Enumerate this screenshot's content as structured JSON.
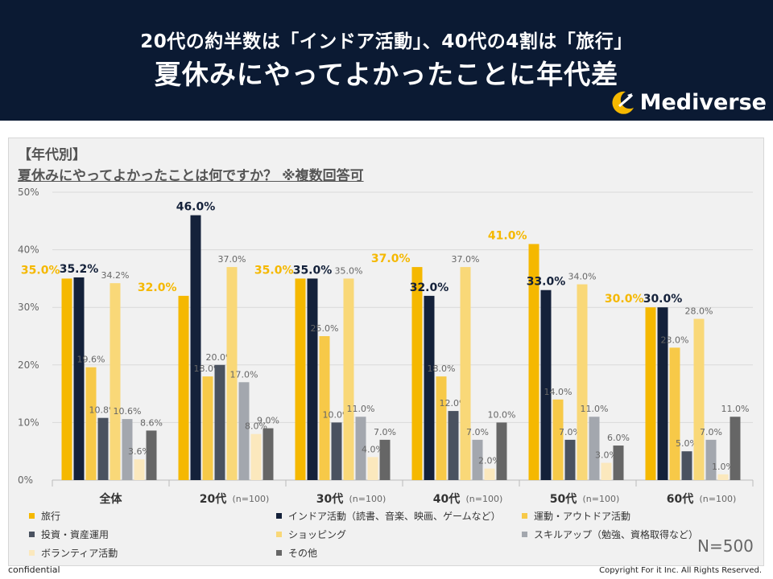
{
  "header": {
    "line1": "20代の約半数は「インドア活動」、40代の4割は「旅行」",
    "line2": "夏休みにやってよかったことに年代差",
    "logo_text": "Mediverse"
  },
  "chart_heading": {
    "category": "【年代別】",
    "question": "夏休みにやってよかったことは何ですか？ ※複数回答可"
  },
  "total_n": "N=500",
  "footer": {
    "left": "confidential",
    "right": "Copyright For it Inc. All Rights Reserved."
  },
  "colors": {
    "header_bg": "#0b1a33",
    "accent_gold": "#f5b800",
    "navy": "#14213a",
    "light_gold": "#f7c948",
    "dark_gray": "#4a5260",
    "pale_gold": "#f9d878",
    "light_gray": "#a3a7ae",
    "cream": "#fbe8bd",
    "mid_gray": "#666666"
  },
  "chart_data": {
    "type": "bar",
    "ylim": [
      0,
      50
    ],
    "yticks": [
      "0%",
      "10%",
      "20%",
      "30%",
      "40%",
      "50%"
    ],
    "categories": [
      {
        "name": "全体",
        "n": ""
      },
      {
        "name": "20代",
        "n": "(n=100)"
      },
      {
        "name": "30代",
        "n": "(n=100)"
      },
      {
        "name": "40代",
        "n": "(n=100)"
      },
      {
        "name": "50代",
        "n": "(n=100)"
      },
      {
        "name": "60代",
        "n": "(n=100)"
      }
    ],
    "series": [
      {
        "name": "旅行",
        "color": "#f5b800",
        "values": [
          35.0,
          32.0,
          35.0,
          37.0,
          41.0,
          30.0
        ],
        "labels": [
          "35.0%",
          "32.0%",
          "35.0%",
          "37.0%",
          "41.0%",
          "30.0%"
        ]
      },
      {
        "name": "インドア活動（読書、音楽、映画、ゲームなど）",
        "color": "#14213a",
        "values": [
          35.2,
          46.0,
          35.0,
          32.0,
          33.0,
          30.0
        ],
        "labels": [
          "35.2%",
          "46.0%",
          "35.0%",
          "32.0%",
          "33.0%",
          "30.0%"
        ]
      },
      {
        "name": "運動・アウトドア活動",
        "color": "#f7c948",
        "values": [
          19.6,
          18.0,
          25.0,
          18.0,
          14.0,
          23.0
        ],
        "labels": [
          "19.6%",
          "18.0%",
          "25.0%",
          "18.0%",
          "14.0%",
          "23.0%"
        ]
      },
      {
        "name": "投資・資産運用",
        "color": "#4a5260",
        "values": [
          10.8,
          20.0,
          10.0,
          12.0,
          7.0,
          5.0
        ],
        "labels": [
          "10.8%",
          "20.0%",
          "10.0%",
          "12.0%",
          "7.0%",
          "5.0%"
        ]
      },
      {
        "name": "ショッピング",
        "color": "#f9d878",
        "values": [
          34.2,
          37.0,
          35.0,
          37.0,
          34.0,
          28.0
        ],
        "labels": [
          "34.2%",
          "37.0%",
          "35.0%",
          "37.0%",
          "34.0%",
          "28.0%"
        ]
      },
      {
        "name": "スキルアップ（勉強、資格取得など）",
        "color": "#a3a7ae",
        "values": [
          10.6,
          17.0,
          11.0,
          7.0,
          11.0,
          7.0
        ],
        "labels": [
          "10.6%",
          "17.0%",
          "11.0%",
          "7.0%",
          "11.0%",
          "7.0%"
        ]
      },
      {
        "name": "ボランティア活動",
        "color": "#fbe8bd",
        "values": [
          3.6,
          8.0,
          4.0,
          2.0,
          3.0,
          1.0
        ],
        "labels": [
          "3.6%",
          "8.0%",
          "4.0%",
          "2.0%",
          "3.0%",
          "1.0%"
        ]
      },
      {
        "name": "その他",
        "color": "#666666",
        "values": [
          8.6,
          9.0,
          7.0,
          10.0,
          6.0,
          11.0
        ],
        "labels": [
          "8.6%",
          "9.0%",
          "7.0%",
          "10.0%",
          "6.0%",
          "11.0%"
        ]
      }
    ]
  }
}
